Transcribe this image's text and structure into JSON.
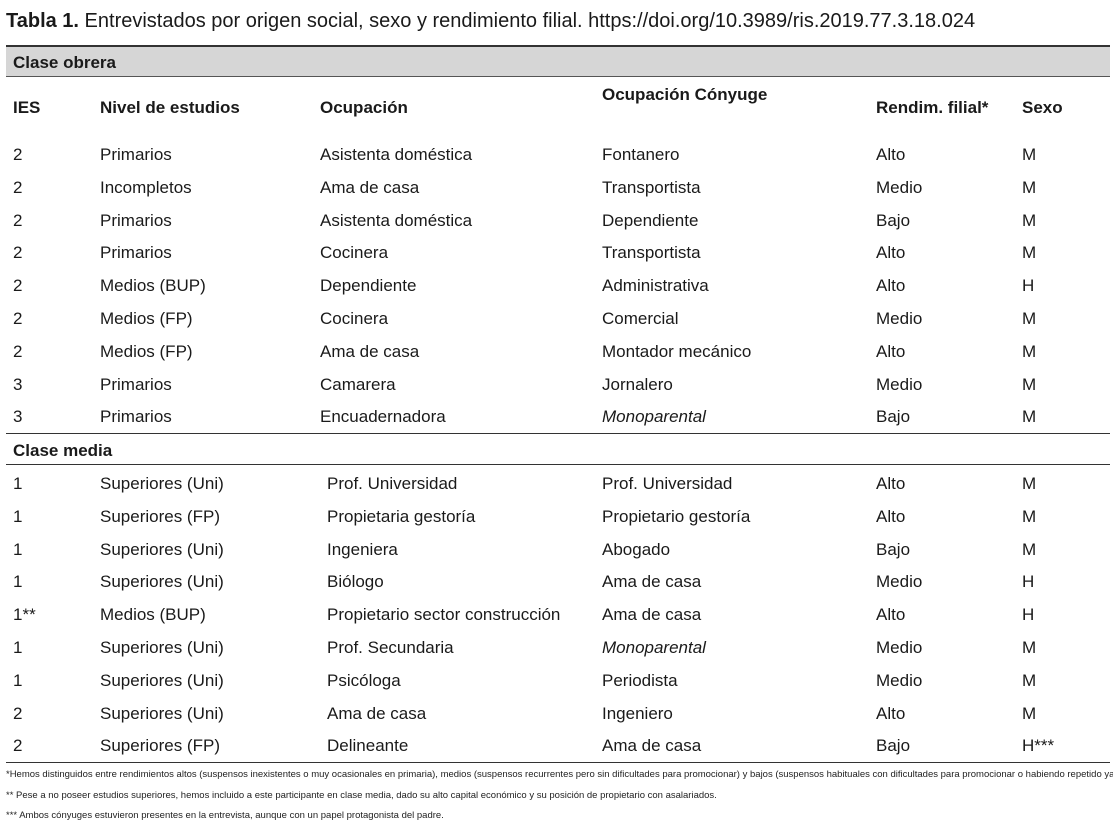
{
  "title": {
    "label": "Tabla 1.",
    "text": " Entrevistados por origen social, sexo y rendimiento filial. https://doi.org/10.3989/ris.2019.77.3.18.024"
  },
  "sections": {
    "obrera": "Clase obrera",
    "media": "Clase media"
  },
  "headers": [
    "IES",
    "Nivel de estudios",
    "Ocupación",
    "Ocupación Cónyuge",
    "Rendim. filial*",
    "Sexo"
  ],
  "rows_obrera": [
    [
      "2",
      "Primarios",
      "Asistenta doméstica",
      "Fontanero",
      "Alto",
      "M"
    ],
    [
      "2",
      "Incompletos",
      "Ama de casa",
      "Transportista",
      "Medio",
      "M"
    ],
    [
      "2",
      "Primarios",
      "Asistenta doméstica",
      "Dependiente",
      "Bajo",
      "M"
    ],
    [
      "2",
      "Primarios",
      "Cocinera",
      "Transportista",
      "Alto",
      "M"
    ],
    [
      "2",
      "Medios (BUP)",
      "Dependiente",
      "Administrativa",
      "Alto",
      "H"
    ],
    [
      "2",
      "Medios (FP)",
      "Cocinera",
      "Comercial",
      "Medio",
      "M"
    ],
    [
      "2",
      "Medios (FP)",
      "Ama de casa",
      "Montador mecánico",
      "Alto",
      "M"
    ],
    [
      "3",
      "Primarios",
      "Camarera",
      "Jornalero",
      "Medio",
      "M"
    ],
    [
      "3",
      "Primarios",
      "Encuadernadora",
      "Monoparental",
      "Bajo",
      "M"
    ]
  ],
  "rows_media": [
    [
      "1",
      "Superiores (Uni)",
      "Prof. Universidad",
      "Prof. Universidad",
      "Alto",
      "M"
    ],
    [
      "1",
      "Superiores (FP)",
      "Propietaria gestoría",
      "Propietario gestoría",
      "Alto",
      "M"
    ],
    [
      "1",
      "Superiores (Uni)",
      "Ingeniera",
      "Abogado",
      "Bajo",
      "M"
    ],
    [
      "1",
      "Superiores (Uni)",
      "Biólogo",
      "Ama de casa",
      "Medio",
      "H"
    ],
    [
      "1**",
      "Medios (BUP)",
      "Propietario sector construcción",
      "Ama de casa",
      "Alto",
      "H"
    ],
    [
      "1",
      "Superiores (Uni)",
      "Prof. Secundaria",
      "Monoparental",
      "Medio",
      "M"
    ],
    [
      "1",
      "Superiores (Uni)",
      "Psicóloga",
      "Periodista",
      "Medio",
      "M"
    ],
    [
      "2",
      "Superiores (Uni)",
      "Ama de casa",
      "Ingeniero",
      "Alto",
      "M"
    ],
    [
      "2",
      "Superiores (FP)",
      "Delineante",
      "Ama de casa",
      "Bajo",
      "H***"
    ]
  ],
  "footnotes": [
    "*Hemos distinguidos entre rendimientos altos (suspensos inexistentes o muy ocasionales en primaria), medios (suspensos recurrentes pero sin dificultades para promocionar) y bajos (suspensos habituales con dificultades para promocionar o habiendo repetido ya un curso).",
    "** Pese a no poseer estudios superiores, hemos incluido a este participante en clase media, dado su alto capital económico y su posición de propietario con asalariados.",
    "*** Ambos cónyuges estuvieron presentes en la entrevista, aunque con un papel protagonista del padre."
  ]
}
